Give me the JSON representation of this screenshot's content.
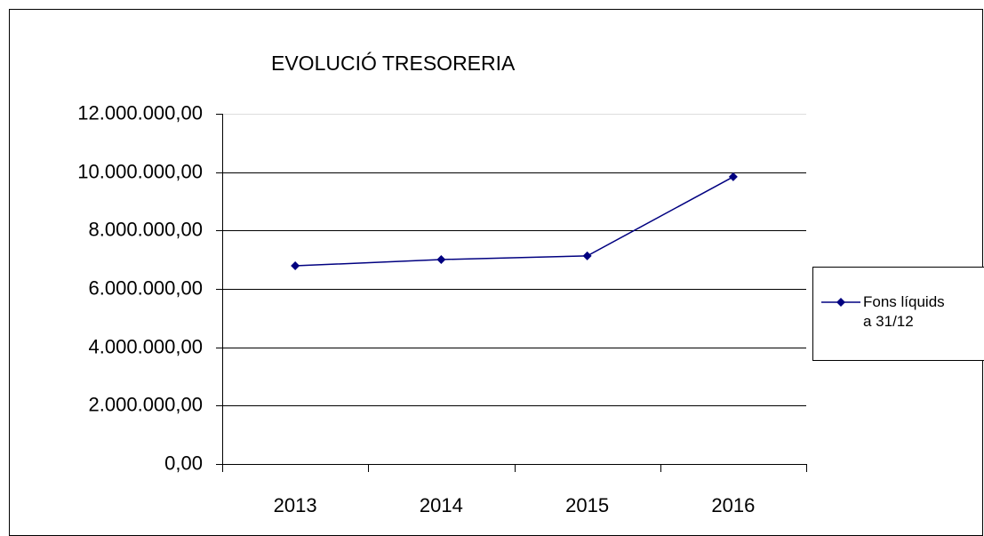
{
  "chart_data": {
    "type": "line",
    "title": "EVOLUCIÓ TRESORERIA",
    "categories": [
      "2013",
      "2014",
      "2015",
      "2016"
    ],
    "series": [
      {
        "name": "Fons líquids a 31/12",
        "color": "#000080",
        "values": [
          6790000,
          7005000,
          7130000,
          9840000
        ]
      }
    ],
    "ylim": [
      0,
      12000000
    ],
    "yticks": [
      {
        "value": 0,
        "label": "0,00"
      },
      {
        "value": 2000000,
        "label": "2.000.000,00"
      },
      {
        "value": 4000000,
        "label": "4.000.000,00"
      },
      {
        "value": 6000000,
        "label": "6.000.000,00"
      },
      {
        "value": 8000000,
        "label": "8.000.000,00"
      },
      {
        "value": 10000000,
        "label": "10.000.000,00"
      },
      {
        "value": 12000000,
        "label": "12.000.000,00"
      }
    ],
    "grid": true,
    "legend": "right"
  }
}
